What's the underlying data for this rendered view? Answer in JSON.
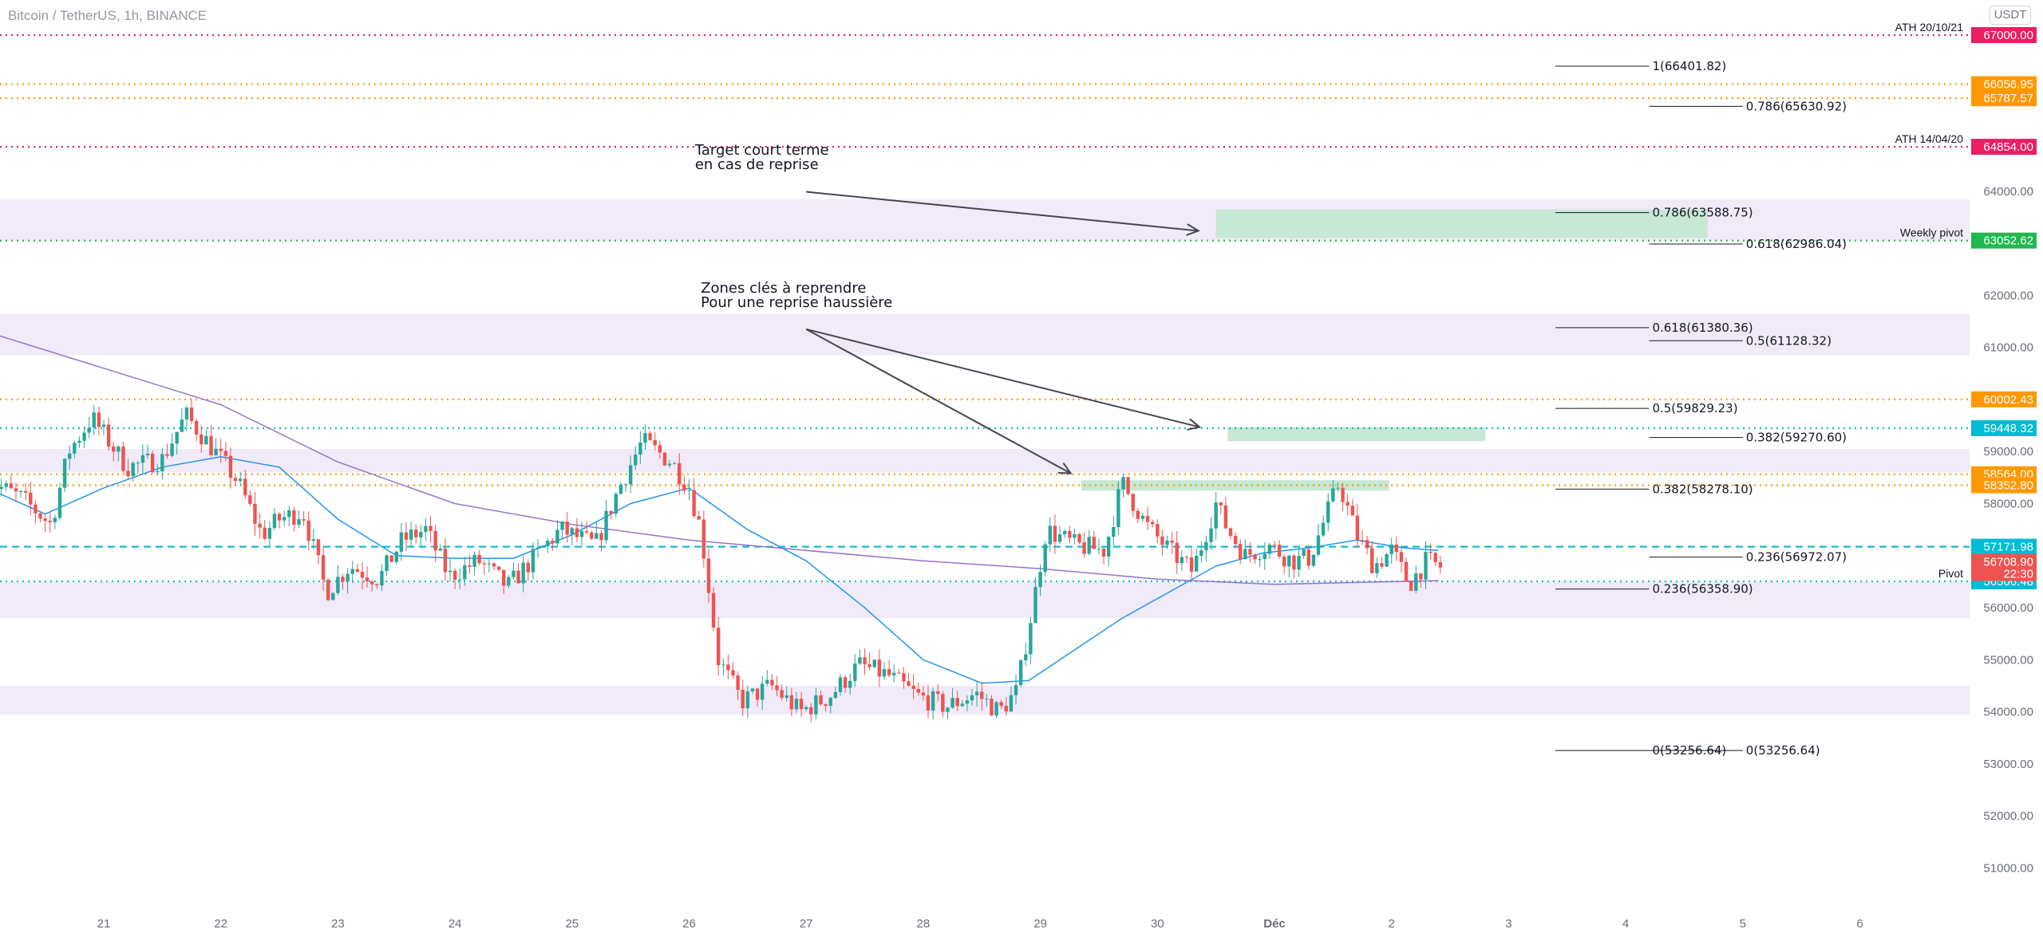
{
  "header": {
    "symbol": "Bitcoin / TetherUS, 1h, BINANCE",
    "currency": "USDT"
  },
  "colors": {
    "candle_up": "#26a69a",
    "candle_down": "#ef5350",
    "ma_fast": "#2196f3",
    "ma_slow": "#9575cd",
    "zone_purple": "#f1eaf8",
    "zone_green": "#c6e8d5",
    "ath_red": "#e91e63",
    "orange": "#ff9800",
    "cyan": "#00bcd4",
    "weekly_green": "#21b84f"
  },
  "chart_data": {
    "type": "candlestick",
    "title": "Bitcoin / TetherUS, 1h, BINANCE",
    "yaxis": {
      "min": 50300,
      "max": 68300,
      "ticks": [
        "51000.00",
        "52000.00",
        "53000.00",
        "54000.00",
        "55000.00",
        "56000.00",
        "57000.00",
        "58000.00",
        "59000.00",
        "61000.00",
        "62000.00",
        "64000.00"
      ]
    },
    "xaxis": {
      "ticks": [
        "21",
        "22",
        "23",
        "24",
        "25",
        "26",
        "27",
        "28",
        "29",
        "30",
        "Déc",
        "2",
        "3",
        "4",
        "5",
        "6"
      ]
    },
    "close_series": [
      {
        "t": 20.0,
        "v": 58450
      },
      {
        "t": 20.3,
        "v": 58100
      },
      {
        "t": 20.55,
        "v": 57600
      },
      {
        "t": 20.7,
        "v": 59000
      },
      {
        "t": 20.9,
        "v": 59650
      },
      {
        "t": 21.2,
        "v": 58700
      },
      {
        "t": 21.5,
        "v": 58850
      },
      {
        "t": 21.7,
        "v": 59700
      },
      {
        "t": 21.95,
        "v": 59000
      },
      {
        "t": 22.15,
        "v": 58400
      },
      {
        "t": 22.35,
        "v": 57400
      },
      {
        "t": 22.5,
        "v": 57700
      },
      {
        "t": 22.7,
        "v": 57850
      },
      {
        "t": 22.9,
        "v": 56300
      },
      {
        "t": 23.1,
        "v": 56800
      },
      {
        "t": 23.35,
        "v": 56550
      },
      {
        "t": 23.55,
        "v": 57300
      },
      {
        "t": 23.75,
        "v": 57500
      },
      {
        "t": 23.95,
        "v": 56600
      },
      {
        "t": 24.2,
        "v": 56900
      },
      {
        "t": 24.45,
        "v": 56400
      },
      {
        "t": 24.65,
        "v": 56900
      },
      {
        "t": 24.9,
        "v": 57500
      },
      {
        "t": 25.2,
        "v": 57200
      },
      {
        "t": 25.4,
        "v": 58300
      },
      {
        "t": 25.6,
        "v": 59200
      },
      {
        "t": 25.85,
        "v": 58800
      },
      {
        "t": 26.0,
        "v": 58300
      },
      {
        "t": 26.1,
        "v": 57500
      },
      {
        "t": 26.25,
        "v": 55000
      },
      {
        "t": 26.45,
        "v": 54200
      },
      {
        "t": 26.7,
        "v": 54500
      },
      {
        "t": 26.95,
        "v": 54000
      },
      {
        "t": 27.2,
        "v": 54300
      },
      {
        "t": 27.45,
        "v": 54900
      },
      {
        "t": 27.7,
        "v": 54700
      },
      {
        "t": 27.95,
        "v": 54300
      },
      {
        "t": 28.2,
        "v": 54100
      },
      {
        "t": 28.45,
        "v": 54350
      },
      {
        "t": 28.65,
        "v": 54000
      },
      {
        "t": 28.8,
        "v": 54400
      },
      {
        "t": 28.95,
        "v": 56200
      },
      {
        "t": 29.05,
        "v": 57500
      },
      {
        "t": 29.3,
        "v": 57200
      },
      {
        "t": 29.55,
        "v": 57100
      },
      {
        "t": 29.7,
        "v": 58400
      },
      {
        "t": 29.9,
        "v": 57600
      },
      {
        "t": 30.1,
        "v": 57100
      },
      {
        "t": 30.3,
        "v": 56700
      },
      {
        "t": 30.5,
        "v": 58000
      },
      {
        "t": 30.6,
        "v": 57500
      },
      {
        "t": 30.75,
        "v": 57000
      },
      {
        "t": 30.95,
        "v": 57200
      },
      {
        "t": 31.15,
        "v": 56900
      },
      {
        "t": 31.3,
        "v": 56950
      },
      {
        "t": 31.55,
        "v": 58400
      },
      {
        "t": 31.7,
        "v": 57400
      },
      {
        "t": 31.85,
        "v": 56800
      },
      {
        "t": 32.0,
        "v": 57100
      },
      {
        "t": 32.15,
        "v": 56450
      },
      {
        "t": 32.3,
        "v": 56900
      },
      {
        "t": 32.45,
        "v": 56750
      }
    ],
    "moving_averages": [
      {
        "name": "MA fast",
        "points": [
          {
            "t": 20.0,
            "v": 58300
          },
          {
            "t": 20.5,
            "v": 57800
          },
          {
            "t": 21.0,
            "v": 58300
          },
          {
            "t": 21.5,
            "v": 58700
          },
          {
            "t": 22.0,
            "v": 58900
          },
          {
            "t": 22.5,
            "v": 58700
          },
          {
            "t": 23.0,
            "v": 57700
          },
          {
            "t": 23.5,
            "v": 57000
          },
          {
            "t": 24.0,
            "v": 56950
          },
          {
            "t": 24.5,
            "v": 56950
          },
          {
            "t": 25.0,
            "v": 57400
          },
          {
            "t": 25.5,
            "v": 58000
          },
          {
            "t": 26.0,
            "v": 58300
          },
          {
            "t": 26.5,
            "v": 57500
          },
          {
            "t": 27.0,
            "v": 56900
          },
          {
            "t": 27.5,
            "v": 56000
          },
          {
            "t": 28.0,
            "v": 55000
          },
          {
            "t": 28.5,
            "v": 54550
          },
          {
            "t": 28.9,
            "v": 54600
          },
          {
            "t": 29.3,
            "v": 55200
          },
          {
            "t": 29.7,
            "v": 55800
          },
          {
            "t": 30.1,
            "v": 56300
          },
          {
            "t": 30.5,
            "v": 56800
          },
          {
            "t": 30.9,
            "v": 57050
          },
          {
            "t": 31.3,
            "v": 57150
          },
          {
            "t": 31.7,
            "v": 57300
          },
          {
            "t": 32.1,
            "v": 57150
          },
          {
            "t": 32.4,
            "v": 57100
          }
        ]
      },
      {
        "name": "MA slow",
        "points": [
          {
            "t": 19.1,
            "v": 61850
          },
          {
            "t": 20.0,
            "v": 61300
          },
          {
            "t": 21.0,
            "v": 60600
          },
          {
            "t": 22.0,
            "v": 59900
          },
          {
            "t": 23.0,
            "v": 58800
          },
          {
            "t": 24.0,
            "v": 58000
          },
          {
            "t": 25.0,
            "v": 57600
          },
          {
            "t": 26.0,
            "v": 57300
          },
          {
            "t": 27.0,
            "v": 57100
          },
          {
            "t": 28.0,
            "v": 56900
          },
          {
            "t": 29.0,
            "v": 56750
          },
          {
            "t": 30.0,
            "v": 56550
          },
          {
            "t": 31.0,
            "v": 56450
          },
          {
            "t": 32.0,
            "v": 56500
          },
          {
            "t": 32.4,
            "v": 56520
          }
        ]
      }
    ],
    "horizontal_levels": [
      {
        "price": 67000.0,
        "label": "67000.00",
        "color": "#e91e63",
        "style": "dotted",
        "note": "ATH 20/10/21"
      },
      {
        "price": 66056.95,
        "label": "66056.95",
        "color": "#ff9800",
        "style": "dotted",
        "note": ""
      },
      {
        "price": 65787.57,
        "label": "65787.57",
        "color": "#ff9800",
        "style": "dotted",
        "note": ""
      },
      {
        "price": 64854.0,
        "label": "64854.00",
        "color": "#e91e63",
        "style": "dotted",
        "note": "ATH 14/04/20"
      },
      {
        "price": 63052.62,
        "label": "63052.62",
        "color": "#21b84f",
        "style": "dotted",
        "note": "Weekly pivot"
      },
      {
        "price": 60002.43,
        "label": "60002.43",
        "color": "#ff9800",
        "style": "dotted",
        "note": ""
      },
      {
        "price": 59448.32,
        "label": "59448.32",
        "color": "#00bcd4",
        "style": "dotted",
        "note": ""
      },
      {
        "price": 58564.0,
        "label": "58564.00",
        "color": "#ff9800",
        "style": "dotted",
        "note": ""
      },
      {
        "price": 58352.8,
        "label": "58352.80",
        "color": "#ff9800",
        "style": "dotted",
        "note": ""
      },
      {
        "price": 57171.98,
        "label": "57171.98",
        "color": "#00bcd4",
        "style": "dashed",
        "note": ""
      },
      {
        "price": 56506.48,
        "label": "56506.48",
        "color": "#00bcd4",
        "style": "dotted",
        "note": "Pivot"
      }
    ],
    "current_price": {
      "label": "56708.90",
      "countdown": "22:30",
      "color": "#ef5350"
    },
    "fib_levels": [
      {
        "label": "1(66401.82)",
        "price": 66401.82,
        "x0": 33.4,
        "x1": 34.2
      },
      {
        "label": "0.786(65630.92)",
        "price": 65630.92,
        "x0": 34.2,
        "x1": 35.0
      },
      {
        "label": "0.786(63588.75)",
        "price": 63588.75,
        "x0": 33.4,
        "x1": 34.2
      },
      {
        "label": "0.618(62986.04)",
        "price": 62986.04,
        "x0": 34.2,
        "x1": 35.0
      },
      {
        "label": "0.618(61380.36)",
        "price": 61380.36,
        "x0": 33.4,
        "x1": 34.2
      },
      {
        "label": "0.5(61128.32)",
        "price": 61128.32,
        "x0": 34.2,
        "x1": 35.0
      },
      {
        "label": "0.5(59829.23)",
        "price": 59829.23,
        "x0": 33.4,
        "x1": 34.2
      },
      {
        "label": "0.382(59270.60)",
        "price": 59270.6,
        "x0": 34.2,
        "x1": 35.0
      },
      {
        "label": "0.382(58278.10)",
        "price": 58278.1,
        "x0": 33.4,
        "x1": 34.2
      },
      {
        "label": "0.236(56972.07)",
        "price": 56972.07,
        "x0": 34.2,
        "x1": 35.0
      },
      {
        "label": "0.236(56358.90)",
        "price": 56358.9,
        "x0": 33.4,
        "x1": 34.2
      },
      {
        "label": "0(53256.64)",
        "price": 53256.64,
        "x0": 33.4,
        "x1": 34.2
      },
      {
        "label": "0(53256.64)",
        "price": 53256.64,
        "x0": 34.2,
        "x1": 35.0
      }
    ],
    "zones": [
      {
        "kind": "purple",
        "from": 63050,
        "to": 63850
      },
      {
        "kind": "purple",
        "from": 60850,
        "to": 61650
      },
      {
        "kind": "purple",
        "from": 58600,
        "to": 59050
      },
      {
        "kind": "purple",
        "from": 55800,
        "to": 56500
      },
      {
        "kind": "purple",
        "from": 53950,
        "to": 54500
      },
      {
        "kind": "green",
        "from": 63100,
        "to": 63650,
        "x0": 30.5,
        "x1": 34.7
      },
      {
        "kind": "green",
        "from": 59200,
        "to": 59470,
        "x0": 30.6,
        "x1": 32.8
      },
      {
        "kind": "green",
        "from": 58250,
        "to": 58450,
        "x0": 29.35,
        "x1": 31.98
      }
    ],
    "annotations": [
      {
        "lines": [
          "Target court terme",
          "en cas de reprise"
        ],
        "anchor_t": 26.05,
        "anchor_v": 64700,
        "arrows": [
          {
            "from_t": 27.0,
            "from_v": 63990,
            "to_t": 30.35,
            "to_v": 63240
          }
        ]
      },
      {
        "lines": [
          "Zones clés à reprendre",
          "Pour une reprise haussière"
        ],
        "anchor_t": 26.1,
        "anchor_v": 62050,
        "arrows": [
          {
            "from_t": 27.0,
            "from_v": 61350,
            "to_t": 29.26,
            "to_v": 58580
          },
          {
            "from_t": 27.0,
            "from_v": 61350,
            "to_t": 30.36,
            "to_v": 59470
          }
        ]
      }
    ]
  }
}
